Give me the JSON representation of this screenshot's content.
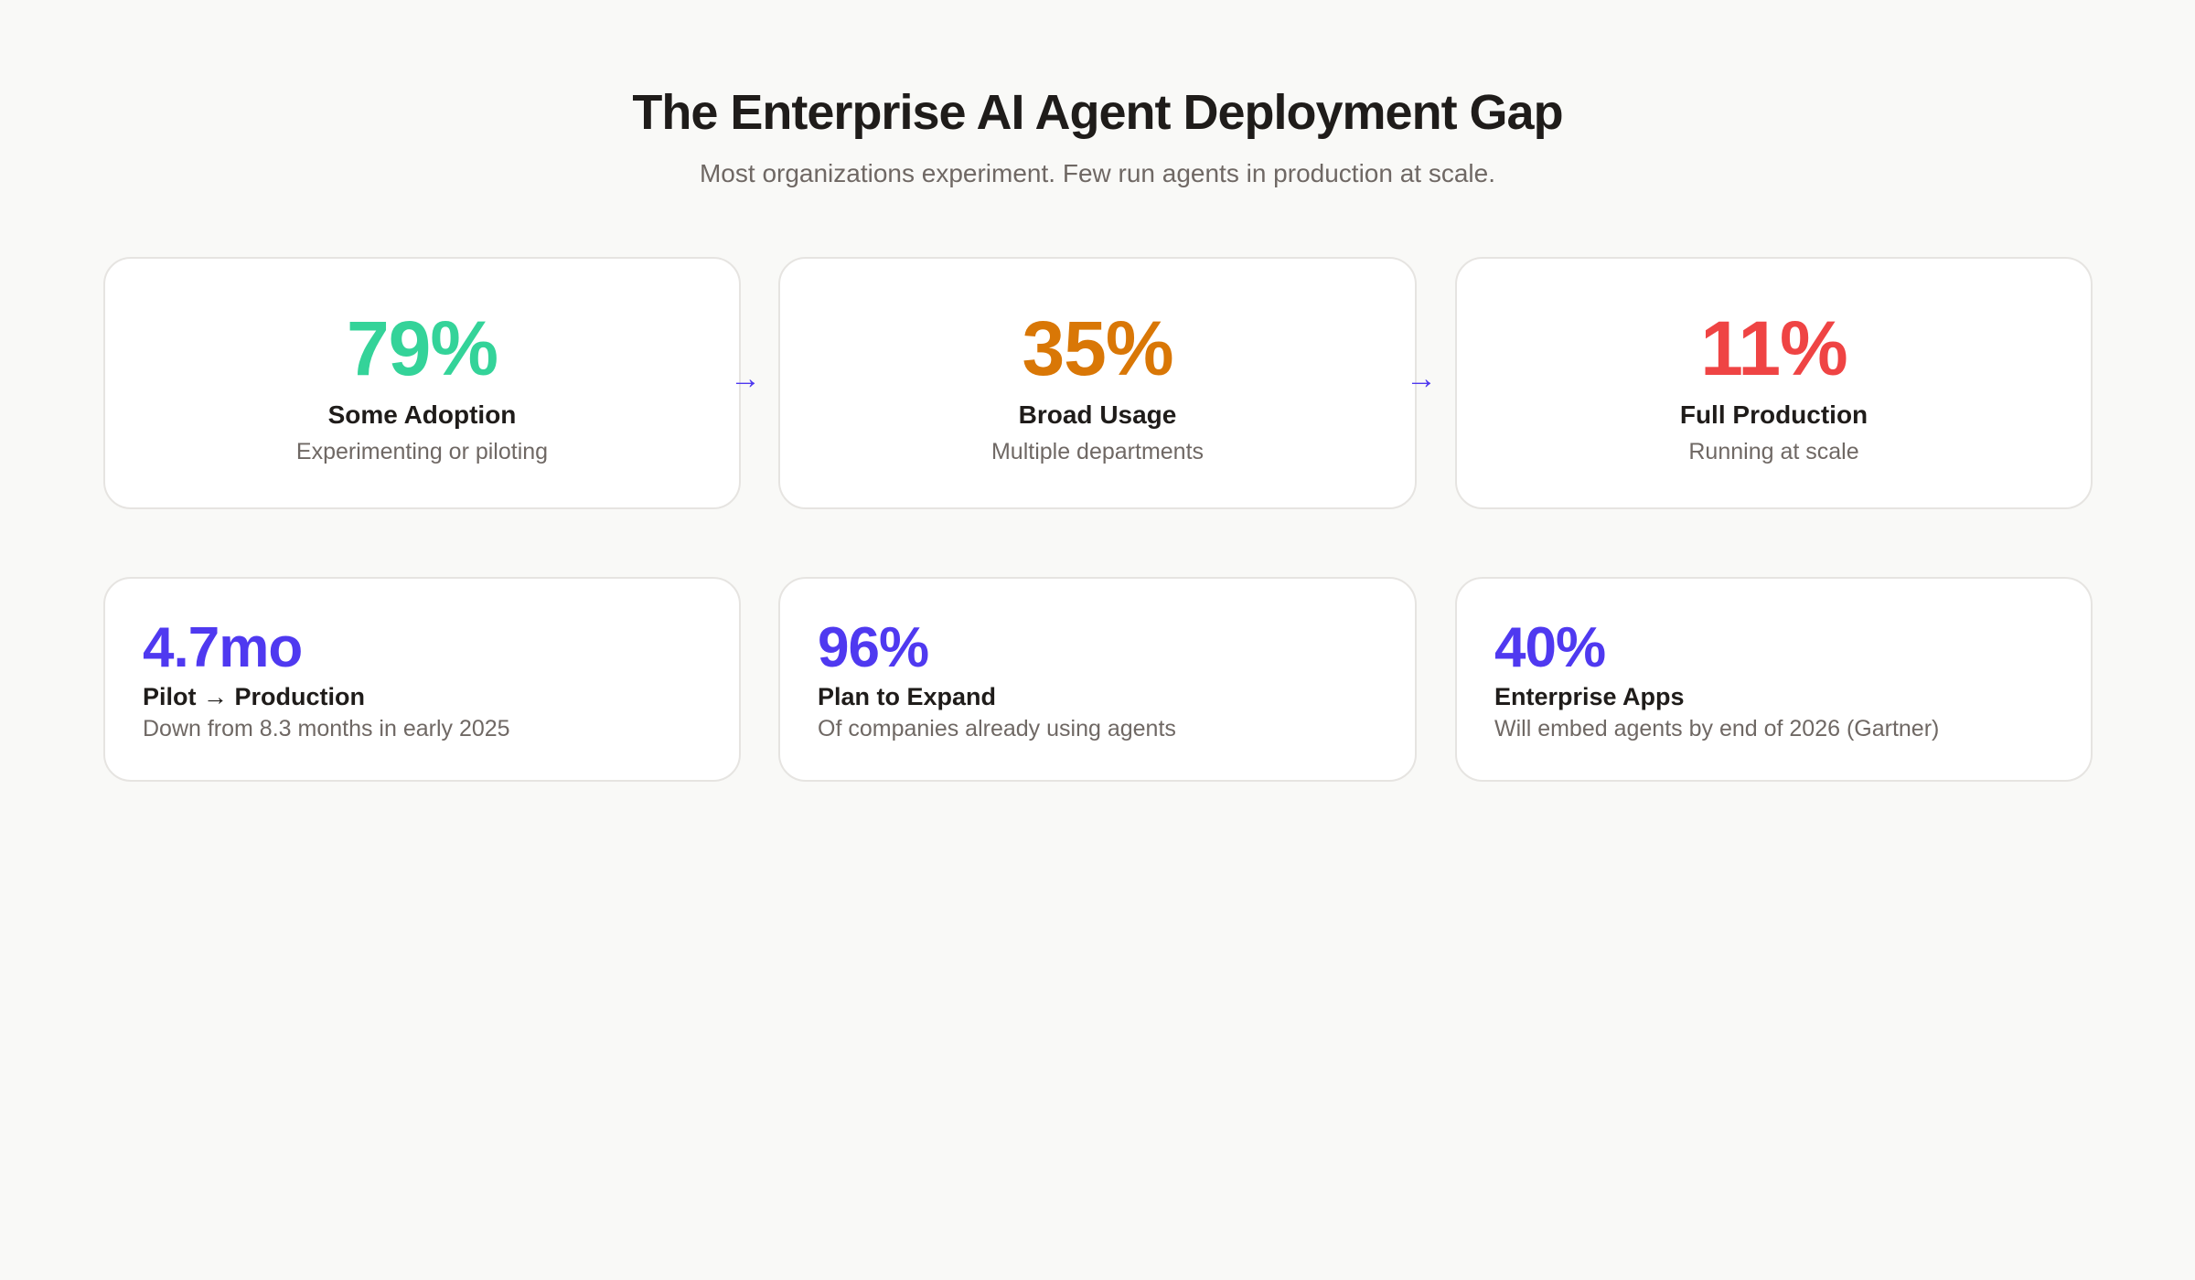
{
  "header": {
    "title": "The Enterprise AI Agent Deployment Gap",
    "subtitle": "Most organizations experiment. Few run agents in production at scale."
  },
  "funnel": [
    {
      "value": "79%",
      "label": "Some Adoption",
      "desc": "Experimenting or piloting",
      "color": "#34d399"
    },
    {
      "value": "35%",
      "label": "Broad Usage",
      "desc": "Multiple departments",
      "color": "#d97706"
    },
    {
      "value": "11%",
      "label": "Full Production",
      "desc": "Running at scale",
      "color": "#ef4444"
    }
  ],
  "arrow_glyph": "→",
  "stats": [
    {
      "value": "4.7mo",
      "label": "Pilot → Production",
      "desc": "Down from 8.3 months in early 2025"
    },
    {
      "value": "96%",
      "label": "Plan to Expand",
      "desc": "Of companies already using agents"
    },
    {
      "value": "40%",
      "label": "Enterprise Apps",
      "desc": "Will embed agents by end of 2026 (Gartner)"
    }
  ],
  "accent": "#4f39f0"
}
